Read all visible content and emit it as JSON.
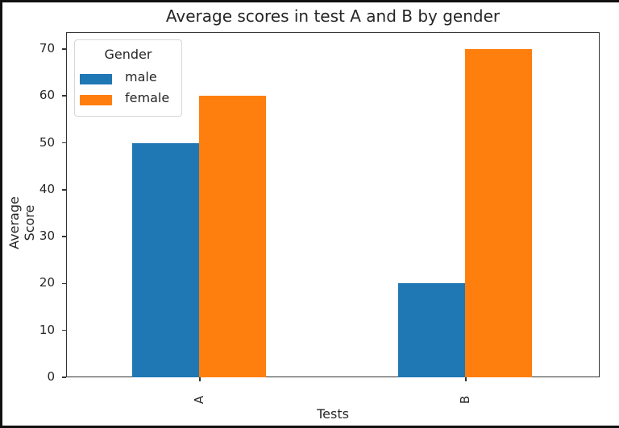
{
  "chart_data": {
    "type": "bar",
    "title": "Average scores in test A and B by gender",
    "xlabel": "Tests",
    "ylabel": "Average Score",
    "categories": [
      "A",
      "B"
    ],
    "series": [
      {
        "name": "male",
        "color": "#1f77b4",
        "values": [
          50,
          20
        ]
      },
      {
        "name": "female",
        "color": "#ff7f0e",
        "values": [
          60,
          70
        ]
      }
    ],
    "ylim": [
      0,
      73.5
    ],
    "yticks": [
      0,
      10,
      20,
      30,
      40,
      50,
      60,
      70
    ],
    "legend": {
      "title": "Gender",
      "position": "upper left",
      "entries": [
        "male",
        "female"
      ]
    },
    "grid": false
  },
  "labels": {
    "title": "Average scores in test A and B by gender",
    "xlabel": "Tests",
    "ylabel": "Average Score",
    "legend_title": "Gender",
    "legend_male": "male",
    "legend_female": "female",
    "cat_a": "A",
    "cat_b": "B",
    "yticks": [
      "0",
      "10",
      "20",
      "30",
      "40",
      "50",
      "60",
      "70"
    ]
  }
}
